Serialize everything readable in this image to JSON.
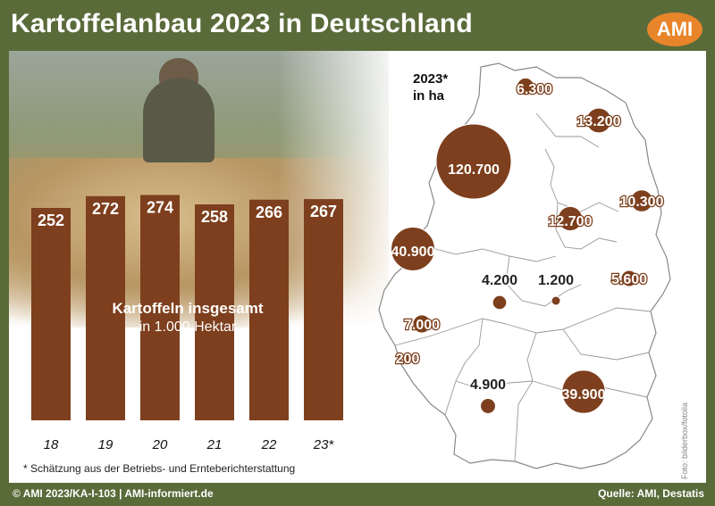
{
  "title": "Kartoffelanbau 2023 in Deutschland",
  "logo": "AMI",
  "colors": {
    "brown": "#7d3f1d",
    "frame": "#5a6b3a",
    "logo": "#e8842a"
  },
  "chart_data": [
    {
      "type": "bar",
      "title": "Kartoffeln insgesamt",
      "subtitle": "in 1.000 Hektar",
      "categories": [
        "18",
        "19",
        "20",
        "21",
        "22",
        "23*"
      ],
      "values": [
        252,
        272,
        274,
        258,
        266,
        267
      ],
      "value_labels": [
        "252",
        "272",
        "274",
        "258",
        "266",
        "267"
      ],
      "xlabel": "",
      "ylabel": ""
    },
    {
      "type": "bubble-map",
      "title": "2023*",
      "subtitle": "in ha",
      "series": [
        {
          "label": "6.300",
          "value": 6300
        },
        {
          "label": "13.200",
          "value": 13200
        },
        {
          "label": "120.700",
          "value": 120700
        },
        {
          "label": "10.300",
          "value": 10300
        },
        {
          "label": "12.700",
          "value": 12700
        },
        {
          "label": "40.900",
          "value": 40900
        },
        {
          "label": "4.200",
          "value": 4200
        },
        {
          "label": "1.200",
          "value": 1200
        },
        {
          "label": "5.600",
          "value": 5600
        },
        {
          "label": "7.000",
          "value": 7000
        },
        {
          "label": "200",
          "value": 200
        },
        {
          "label": "4.900",
          "value": 4900
        },
        {
          "label": "39.900",
          "value": 39900
        }
      ]
    }
  ],
  "footnote": "* Schätzung aus der Betriebs- und Ernteberichterstattung",
  "photo_credit": "Foto: bilderbox/fotolia",
  "footer": {
    "left": "© AMI 2023/KA-I-103 | AMI-informiert.de",
    "right": "Quelle: AMI, Destatis"
  }
}
